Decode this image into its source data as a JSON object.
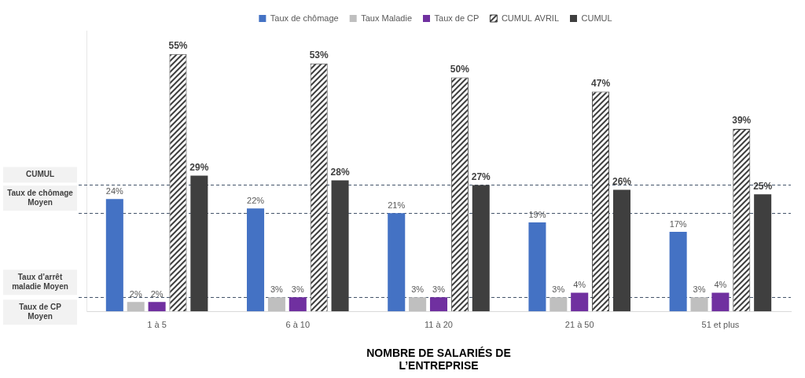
{
  "chart_data": {
    "type": "bar",
    "categories": [
      "1 à 5",
      "6 à 10",
      "11 à 20",
      "21 à 50",
      "51 et plus"
    ],
    "x_label": [
      "NOMBRE DE SALARIÉS DE",
      "L’ENTREPRISE"
    ],
    "series": [
      {
        "name": "Taux de chômage",
        "color": "#4472C4",
        "values": [
          24,
          22,
          21,
          19,
          17
        ],
        "value_labels": [
          "24%",
          "22%",
          "21%",
          "19%",
          "17%"
        ]
      },
      {
        "name": "Taux Maladie",
        "color": "#BFBFBF",
        "values": [
          2,
          3,
          3,
          3,
          3
        ],
        "value_labels": [
          "2%",
          "3%",
          "3%",
          "3%",
          "3%"
        ]
      },
      {
        "name": "Taux de CP",
        "color": "#7030A0",
        "values": [
          2,
          3,
          3,
          4,
          4
        ],
        "value_labels": [
          "2%",
          "3%",
          "3%",
          "4%",
          "4%"
        ]
      },
      {
        "name": "CUMUL AVRIL",
        "color": "#404040",
        "values": [
          55,
          53,
          50,
          47,
          39
        ],
        "value_labels": [
          "55%",
          "53%",
          "50%",
          "47%",
          "39%"
        ]
      },
      {
        "name": "CUMUL",
        "color": "#3F3F3F",
        "values": [
          29,
          28,
          27,
          26,
          25
        ],
        "value_labels": [
          "29%",
          "28%",
          "27%",
          "26%",
          "25%"
        ]
      }
    ],
    "ylim": [
      0,
      60
    ],
    "yticks": [],
    "grid": false,
    "legend": "top",
    "data_labels": true,
    "tick_labels": "x",
    "reference_lines": [
      {
        "label": "CUMUL",
        "value": 27
      },
      {
        "label": "Taux de chômage Moyen",
        "value": 21
      },
      {
        "label": "Taux d’arrêt maladie Moyen",
        "value": 3
      },
      {
        "label": "Taux de CP Moyen",
        "value": 3
      }
    ]
  }
}
